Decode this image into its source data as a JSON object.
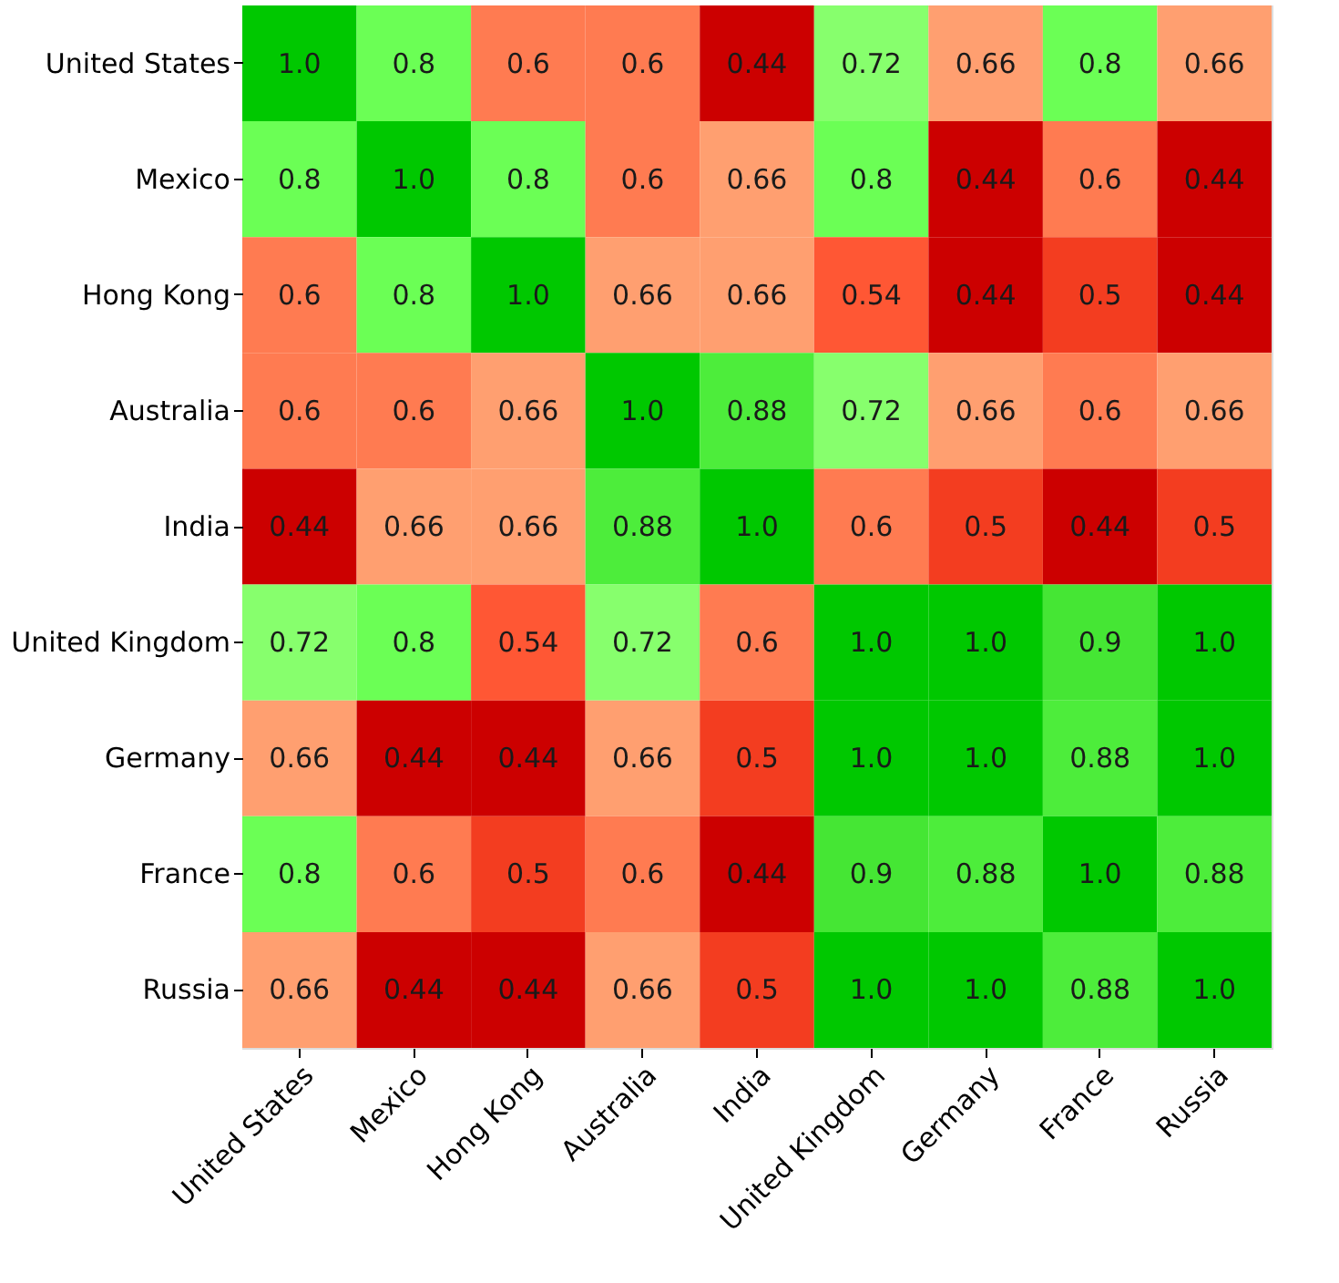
{
  "chart_data": {
    "type": "heatmap",
    "categories": [
      "United States",
      "Mexico",
      "Hong Kong",
      "Australia",
      "India",
      "United Kingdom",
      "Germany",
      "France",
      "Russia"
    ],
    "y_categories": [
      "United States",
      "Mexico",
      "Hong Kong",
      "Australia",
      "India",
      "United Kingdom",
      "Germany",
      "France",
      "Russia"
    ],
    "cells": [
      [
        1.0,
        0.8,
        0.6,
        0.6,
        0.44,
        0.72,
        0.66,
        0.8,
        0.66
      ],
      [
        0.8,
        1.0,
        0.8,
        0.6,
        0.66,
        0.8,
        0.44,
        0.6,
        0.44
      ],
      [
        0.6,
        0.8,
        1.0,
        0.66,
        0.66,
        0.54,
        0.44,
        0.5,
        0.44
      ],
      [
        0.6,
        0.6,
        0.66,
        1.0,
        0.88,
        0.72,
        0.66,
        0.6,
        0.66
      ],
      [
        0.44,
        0.66,
        0.66,
        0.88,
        1.0,
        0.6,
        0.5,
        0.44,
        0.5
      ],
      [
        0.72,
        0.8,
        0.54,
        0.72,
        0.6,
        1.0,
        1.0,
        0.9,
        1.0
      ],
      [
        0.66,
        0.44,
        0.44,
        0.66,
        0.5,
        1.0,
        1.0,
        0.88,
        1.0
      ],
      [
        0.8,
        0.6,
        0.5,
        0.6,
        0.44,
        0.9,
        0.88,
        1.0,
        0.88
      ],
      [
        0.66,
        0.44,
        0.44,
        0.66,
        0.5,
        1.0,
        1.0,
        0.88,
        1.0
      ]
    ],
    "cell_labels": [
      [
        "1.0",
        "0.8",
        "0.6",
        "0.6",
        "0.44",
        "0.72",
        "0.66",
        "0.8",
        "0.66"
      ],
      [
        "0.8",
        "1.0",
        "0.8",
        "0.6",
        "0.66",
        "0.8",
        "0.44",
        "0.6",
        "0.44"
      ],
      [
        "0.6",
        "0.8",
        "1.0",
        "0.66",
        "0.66",
        "0.54",
        "0.44",
        "0.5",
        "0.44"
      ],
      [
        "0.6",
        "0.6",
        "0.66",
        "1.0",
        "0.88",
        "0.72",
        "0.66",
        "0.6",
        "0.66"
      ],
      [
        "0.44",
        "0.66",
        "0.66",
        "0.88",
        "1.0",
        "0.6",
        "0.5",
        "0.44",
        "0.5"
      ],
      [
        "0.72",
        "0.8",
        "0.54",
        "0.72",
        "0.6",
        "1.0",
        "1.0",
        "0.9",
        "1.0"
      ],
      [
        "0.66",
        "0.44",
        "0.44",
        "0.66",
        "0.5",
        "1.0",
        "1.0",
        "0.88",
        "1.0"
      ],
      [
        "0.8",
        "0.6",
        "0.5",
        "0.6",
        "0.44",
        "0.9",
        "0.88",
        "1.0",
        "0.88"
      ],
      [
        "0.66",
        "0.44",
        "0.44",
        "0.66",
        "0.5",
        "1.0",
        "1.0",
        "0.88",
        "1.0"
      ]
    ],
    "colors": [
      "#cc0000",
      "#ffffff",
      "#00c800"
    ]
  }
}
